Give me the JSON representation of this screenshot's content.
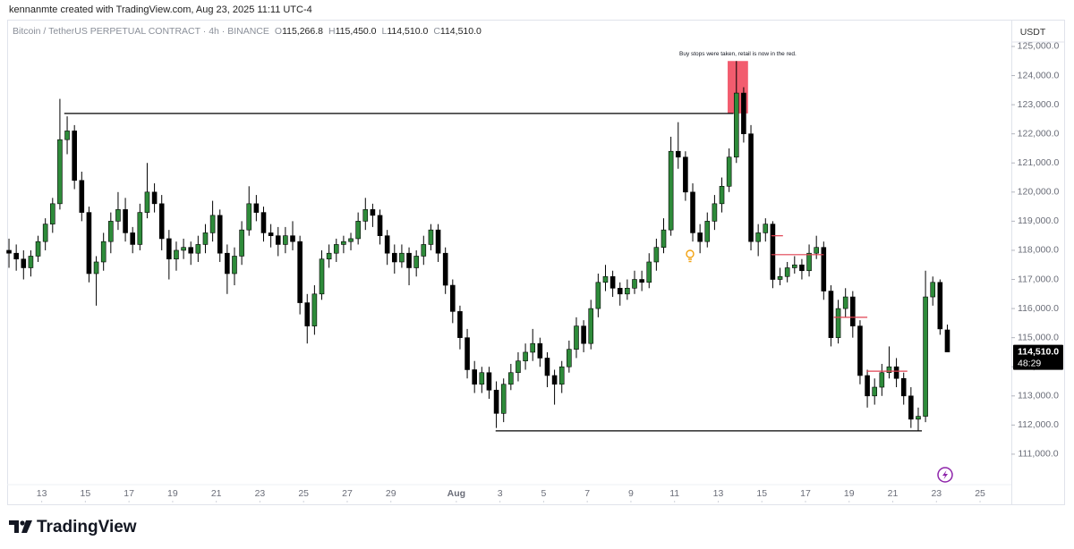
{
  "header": {
    "credit": "kennanmte created with TradingView.com, Aug 23, 2025 11:11 UTC-4"
  },
  "footer": {
    "logo": "TradingView"
  },
  "chart_data": {
    "type": "candlestick",
    "title": "Bitcoin / TetherUS PERPETUAL CONTRACT · 4h · BINANCE",
    "legend_values": [
      {
        "prefix": "O",
        "value": 115266.8,
        "label": "115,266.8"
      },
      {
        "prefix": "H",
        "value": 115450,
        "label": "115,450.0"
      },
      {
        "prefix": "L",
        "value": 114510,
        "label": "114,510.0"
      },
      {
        "prefix": "C",
        "value": 114510,
        "label": "114,510.0"
      }
    ],
    "y_axis_unit": "USDT",
    "annotation": "Buy stops were taken, retail is now in the red.",
    "up_color": "#2e8b3a",
    "down_color": "#000000",
    "ylim": [
      109340,
      125920
    ],
    "yticks": [
      {
        "value": 111000,
        "label": "111,000.0"
      },
      {
        "value": 112000,
        "label": "112,000.0"
      },
      {
        "value": 113000,
        "label": "113,000.0"
      },
      {
        "value": 114000,
        "label": "114,000.0"
      },
      {
        "value": 115000,
        "label": "115,000.0"
      },
      {
        "value": 116000,
        "label": "116,000.0"
      },
      {
        "value": 117000,
        "label": "117,000.0"
      },
      {
        "value": 118000,
        "label": "118,000.0"
      },
      {
        "value": 119000,
        "label": "119,000.0"
      },
      {
        "value": 120000,
        "label": "120,000.0"
      },
      {
        "value": 121000,
        "label": "121,000.0"
      },
      {
        "value": 122000,
        "label": "122,000.0"
      },
      {
        "value": 123000,
        "label": "123,000.0"
      },
      {
        "value": 124000,
        "label": "124,000.0"
      },
      {
        "value": 125000,
        "label": "125,000.0"
      }
    ],
    "xlim": [
      -0.25,
      137.8
    ],
    "xticks": [
      {
        "value": 4.5,
        "label": "13"
      },
      {
        "value": 10.5,
        "label": "15"
      },
      {
        "value": 16.5,
        "label": "17"
      },
      {
        "value": 22.5,
        "label": "19"
      },
      {
        "value": 28.5,
        "label": "21"
      },
      {
        "value": 34.5,
        "label": "23"
      },
      {
        "value": 40.5,
        "label": "25"
      },
      {
        "value": 46.5,
        "label": "27"
      },
      {
        "value": 52.5,
        "label": "29"
      },
      {
        "value": 61.5,
        "label": "Aug"
      },
      {
        "value": 67.5,
        "label": "3"
      },
      {
        "value": 73.5,
        "label": "5"
      },
      {
        "value": 79.5,
        "label": "7"
      },
      {
        "value": 85.5,
        "label": "9"
      },
      {
        "value": 91.5,
        "label": "11"
      },
      {
        "value": 97.5,
        "label": "13"
      },
      {
        "value": 103.5,
        "label": "15"
      },
      {
        "value": 109.5,
        "label": "17"
      },
      {
        "value": 115.5,
        "label": "19"
      },
      {
        "value": 121.5,
        "label": "21"
      },
      {
        "value": 127.5,
        "label": "23"
      },
      {
        "value": 133.5,
        "label": "25"
      }
    ],
    "last_price": {
      "value": 114510,
      "label": "114,510.0",
      "countdown": "48:29"
    },
    "lines": [
      {
        "price": 122700,
        "from": 7.6,
        "to": 99.6,
        "color": "#000000"
      },
      {
        "price": 111800,
        "from": 66.9,
        "to": 125.5,
        "color": "#000000"
      },
      {
        "price": 118500,
        "from": 104.8,
        "to": 106.4,
        "color": "#e04050"
      },
      {
        "price": 117850,
        "from": 104.8,
        "to": 112,
        "color": "#e04050"
      },
      {
        "price": 115700,
        "from": 113.4,
        "to": 118,
        "color": "#e04050"
      },
      {
        "price": 113850,
        "from": 117.9,
        "to": 123.5,
        "color": "#e04050"
      }
    ],
    "boxes": [
      {
        "top": 124500,
        "bottom": 122700,
        "from": 98.8,
        "to": 101.6,
        "color": "#f25c6e"
      }
    ],
    "candles": [
      [
        118000,
        118400,
        117400,
        117900
      ],
      [
        117900,
        118200,
        117300,
        117700
      ],
      [
        117700,
        118000,
        117000,
        117400
      ],
      [
        117400,
        118000,
        117100,
        117800
      ],
      [
        117800,
        118500,
        117600,
        118300
      ],
      [
        118300,
        119100,
        118000,
        118900
      ],
      [
        118900,
        119800,
        118600,
        119600
      ],
      [
        119600,
        123200,
        119400,
        121800
      ],
      [
        121800,
        122600,
        121300,
        122100
      ],
      [
        122100,
        122300,
        120100,
        120400
      ],
      [
        120400,
        120700,
        119000,
        119300
      ],
      [
        119300,
        119500,
        116900,
        117200
      ],
      [
        117200,
        117800,
        116100,
        117600
      ],
      [
        117600,
        118600,
        117300,
        118300
      ],
      [
        118300,
        119300,
        117900,
        119000
      ],
      [
        119000,
        120000,
        118700,
        119400
      ],
      [
        119400,
        119800,
        118300,
        118600
      ],
      [
        118600,
        118800,
        117900,
        118200
      ],
      [
        118200,
        119600,
        118000,
        119300
      ],
      [
        119300,
        121000,
        119100,
        120000
      ],
      [
        120000,
        120300,
        119300,
        119600
      ],
      [
        119600,
        119900,
        118000,
        118400
      ],
      [
        118400,
        118700,
        117000,
        117700
      ],
      [
        117700,
        118300,
        117300,
        118000
      ],
      [
        118000,
        118400,
        117700,
        118100
      ],
      [
        118100,
        118300,
        117500,
        117900
      ],
      [
        117900,
        118500,
        117600,
        118200
      ],
      [
        118200,
        118900,
        117900,
        118600
      ],
      [
        118600,
        119700,
        118300,
        119200
      ],
      [
        119200,
        119400,
        117600,
        117900
      ],
      [
        117900,
        118200,
        116500,
        117200
      ],
      [
        117200,
        118100,
        116800,
        117800
      ],
      [
        117800,
        119000,
        117500,
        118700
      ],
      [
        118700,
        120200,
        118500,
        119600
      ],
      [
        119600,
        119900,
        119000,
        119300
      ],
      [
        119300,
        119500,
        118300,
        118600
      ],
      [
        118600,
        118900,
        118100,
        118500
      ],
      [
        118500,
        118800,
        117800,
        118200
      ],
      [
        118200,
        118800,
        117900,
        118500
      ],
      [
        118500,
        119000,
        118000,
        118300
      ],
      [
        118300,
        118500,
        115800,
        116200
      ],
      [
        116200,
        116500,
        114800,
        115400
      ],
      [
        115400,
        116800,
        115100,
        116500
      ],
      [
        116500,
        118000,
        116300,
        117700
      ],
      [
        117700,
        118200,
        117400,
        117900
      ],
      [
        117900,
        118400,
        117600,
        118200
      ],
      [
        118200,
        118500,
        117900,
        118300
      ],
      [
        118300,
        118600,
        118000,
        118400
      ],
      [
        118400,
        119300,
        118200,
        119000
      ],
      [
        119000,
        119800,
        118700,
        119400
      ],
      [
        119400,
        119600,
        118800,
        119200
      ],
      [
        119200,
        119400,
        118200,
        118500
      ],
      [
        118500,
        118700,
        117500,
        117900
      ],
      [
        117900,
        118200,
        117200,
        117600
      ],
      [
        117600,
        118200,
        117400,
        117900
      ],
      [
        117900,
        118100,
        116800,
        117400
      ],
      [
        117400,
        118000,
        117100,
        117800
      ],
      [
        117800,
        118500,
        117500,
        118200
      ],
      [
        118200,
        118900,
        118000,
        118700
      ],
      [
        118700,
        118900,
        117600,
        117900
      ],
      [
        117900,
        118100,
        116500,
        116800
      ],
      [
        116800,
        117000,
        115500,
        115900
      ],
      [
        115900,
        116100,
        114600,
        115000
      ],
      [
        115000,
        115300,
        113600,
        113900
      ],
      [
        113900,
        114200,
        113100,
        113400
      ],
      [
        113400,
        114000,
        113100,
        113800
      ],
      [
        113800,
        114000,
        112900,
        113200
      ],
      [
        113200,
        113500,
        111900,
        112400
      ],
      [
        112400,
        113600,
        112100,
        113400
      ],
      [
        113400,
        114100,
        113200,
        113800
      ],
      [
        113800,
        114500,
        113500,
        114200
      ],
      [
        114200,
        114800,
        113900,
        114500
      ],
      [
        114500,
        115300,
        114200,
        114800
      ],
      [
        114800,
        115000,
        114000,
        114300
      ],
      [
        114300,
        114500,
        113300,
        113700
      ],
      [
        113700,
        113900,
        112700,
        113400
      ],
      [
        113400,
        114200,
        113100,
        114000
      ],
      [
        114000,
        114900,
        113800,
        114600
      ],
      [
        114600,
        115700,
        114300,
        115400
      ],
      [
        115400,
        115600,
        114500,
        114800
      ],
      [
        114800,
        116300,
        114600,
        116000
      ],
      [
        116000,
        117200,
        115700,
        116900
      ],
      [
        116900,
        117500,
        116600,
        117100
      ],
      [
        117100,
        117300,
        116400,
        116700
      ],
      [
        116700,
        116900,
        116100,
        116500
      ],
      [
        116500,
        117000,
        116300,
        116700
      ],
      [
        116700,
        117300,
        116500,
        117000
      ],
      [
        117000,
        117300,
        116600,
        116900
      ],
      [
        116900,
        117900,
        116700,
        117600
      ],
      [
        117600,
        118400,
        117300,
        118100
      ],
      [
        118100,
        119100,
        117900,
        118700
      ],
      [
        118700,
        121900,
        118500,
        121400
      ],
      [
        121400,
        122400,
        120800,
        121200
      ],
      [
        121200,
        121400,
        119700,
        120000
      ],
      [
        120000,
        120300,
        118300,
        118600
      ],
      [
        118600,
        118900,
        117900,
        118300
      ],
      [
        118300,
        119300,
        118100,
        119000
      ],
      [
        119000,
        119900,
        118700,
        119600
      ],
      [
        119600,
        120500,
        119300,
        120200
      ],
      [
        120200,
        121500,
        120000,
        121200
      ],
      [
        121200,
        124500,
        121000,
        123400
      ],
      [
        123400,
        123600,
        121700,
        122000
      ],
      [
        122000,
        122300,
        118000,
        118300
      ],
      [
        118300,
        118900,
        117800,
        118600
      ],
      [
        118600,
        119100,
        118300,
        118900
      ],
      [
        118900,
        119000,
        116700,
        117000
      ],
      [
        117000,
        117400,
        116800,
        117100
      ],
      [
        117100,
        117600,
        116900,
        117400
      ],
      [
        117400,
        117800,
        117200,
        117500
      ],
      [
        117500,
        117700,
        117000,
        117300
      ],
      [
        117300,
        118200,
        117100,
        117900
      ],
      [
        117900,
        118500,
        117700,
        118100
      ],
      [
        118100,
        118300,
        116300,
        116600
      ],
      [
        116600,
        116800,
        114700,
        115000
      ],
      [
        115000,
        116300,
        114800,
        116000
      ],
      [
        116000,
        116700,
        115700,
        116400
      ],
      [
        116400,
        116600,
        115000,
        115400
      ],
      [
        115400,
        115600,
        113400,
        113700
      ],
      [
        113700,
        113900,
        112600,
        113000
      ],
      [
        113000,
        113600,
        112700,
        113300
      ],
      [
        113300,
        114100,
        113000,
        113800
      ],
      [
        113800,
        114700,
        113600,
        114000
      ],
      [
        114000,
        114300,
        113300,
        113600
      ],
      [
        113600,
        113800,
        112700,
        113000
      ],
      [
        113000,
        113300,
        111900,
        112200
      ],
      [
        112200,
        112600,
        111800,
        112300
      ],
      [
        112300,
        117300,
        112100,
        116400
      ],
      [
        116400,
        117100,
        116100,
        116900
      ],
      [
        116900,
        117000,
        115100,
        115300
      ],
      [
        115266.8,
        115450,
        114510,
        114510
      ]
    ]
  }
}
